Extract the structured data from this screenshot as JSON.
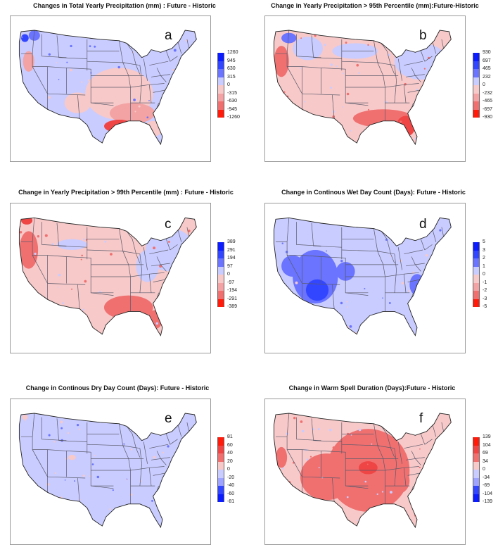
{
  "palette": {
    "blue_ramp": [
      "#0b1cff",
      "#3346ff",
      "#6a74ff",
      "#9da3ff",
      "#c9ccff"
    ],
    "red_ramp": [
      "#f7c9c9",
      "#f3a3a3",
      "#f07070",
      "#f04545",
      "#ff1a0a"
    ],
    "state_lines": "#5a5a6a",
    "frame": "#9a9a9a"
  },
  "panels": [
    {
      "id": "a",
      "title": "Changes in Total Yearly Precipitation (mm) : Future - Historic",
      "letter": "a",
      "legend": {
        "order": "blue-top",
        "labels": [
          "1260",
          "945",
          "630",
          "315",
          "0",
          "-315",
          "-630",
          "-945",
          "-1260"
        ]
      },
      "map_theme": "mostly-blue-northeast, pink-south"
    },
    {
      "id": "b",
      "title": "Change in Yearly Precipitation > 95th Percentile (mm):Future-Historic",
      "letter": "b",
      "legend": {
        "order": "blue-top",
        "labels": [
          "930",
          "697",
          "465",
          "232",
          "0",
          "-232",
          "-465",
          "-697",
          "-930"
        ]
      },
      "map_theme": "pink-center, red-gulf"
    },
    {
      "id": "c",
      "title": "Change in Yearly Precipitation > 99th Percentile (mm) : Future - Historic",
      "letter": "c",
      "legend": {
        "order": "blue-top",
        "labels": [
          "389",
          "291",
          "194",
          "97",
          "0",
          "-97",
          "-194",
          "-291",
          "-389"
        ]
      },
      "map_theme": "pink-dominant, red-gulf, blue-northeast"
    },
    {
      "id": "d",
      "title": "Change in Continous Wet Day Count (Days): Future - Historic",
      "letter": "d",
      "legend": {
        "order": "blue-top",
        "labels": [
          "5",
          "3",
          "2",
          "1",
          "0",
          "-1",
          "-2",
          "-3",
          "-5"
        ]
      },
      "map_theme": "light-blue, deep-blue-southwest"
    },
    {
      "id": "e",
      "title": "Change in Continous Dry Day Count (Days): Future - Historic",
      "letter": "e",
      "legend": {
        "order": "red-top",
        "labels": [
          "81",
          "60",
          "40",
          "20",
          "0",
          "-20",
          "-40",
          "-60",
          "-81"
        ]
      },
      "map_theme": "uniform-light-blue"
    },
    {
      "id": "f",
      "title": "Change in Warm Spell Duration (Days):Future - Historic",
      "letter": "f",
      "legend": {
        "order": "red-top",
        "labels": [
          "139",
          "104",
          "69",
          "34",
          "0",
          "-34",
          "-69",
          "-104",
          "-139"
        ]
      },
      "map_theme": "red-center, pink-edges"
    }
  ]
}
